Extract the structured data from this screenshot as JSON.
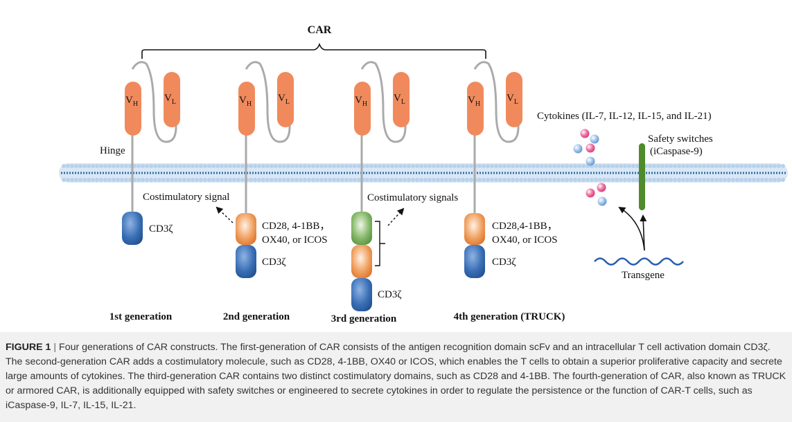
{
  "diagram": {
    "car_label": "CAR",
    "hinge_label": "Hinge",
    "vh": {
      "main": "V",
      "sub": "H"
    },
    "vl": {
      "main": "V",
      "sub": "L"
    },
    "cd3z": "CD3ζ",
    "gen1": {
      "title": "1st  generation"
    },
    "gen2": {
      "title": "2nd  generation",
      "signal": "Costimulatory signal",
      "costim_line1": "CD28, 4-1BB，",
      "costim_line2": "OX40, or ICOS"
    },
    "gen3": {
      "title": "3rd generation",
      "signal": "Costimulatory signals"
    },
    "gen4": {
      "title": "4th generation (TRUCK)",
      "costim_line1": "CD28,4-1BB，",
      "costim_line2": "OX40, or ICOS",
      "cytokines": "Cytokines (IL-7, IL-12, IL-15, and IL-21)",
      "safety_line1": "Safety switches",
      "safety_line2": "(iCaspase-9)",
      "transgene": "Transgene"
    },
    "colors": {
      "vh_vl": "#f08a5d",
      "membrane": "#c9dcf0",
      "membrane_core": "#2e6ea6",
      "cd3z": "#2f66ad",
      "costim_orange": "#e67a2e",
      "costim_green": "#5f9a47",
      "safety_switch": "#4f8a2b",
      "cytokine_pink": "#e0508a",
      "cytokine_blue": "#7aa8dc"
    }
  },
  "caption": {
    "label": "FIGURE 1",
    "separator": "|",
    "text": "Four generations of CAR constructs. The first-generation of CAR consists of the antigen recognition domain scFv and an intracellular T cell activation domain CD3ζ. The second-generation CAR adds a costimulatory molecule, such as CD28, 4-1BB, OX40 or ICOS, which enables the T cells to obtain a superior proliferative capacity and secrete large amounts of cytokines. The third-generation CAR contains two distinct costimulatory domains, such as CD28 and 4-1BB. The fourth-generation of CAR, also known as TRUCK or armored CAR, is additionally equipped with safety switches or engineered to secrete cytokines in order to regulate the persistence or the function of CAR-T cells, such as iCaspase-9, IL-7, IL-15, IL-21."
  }
}
